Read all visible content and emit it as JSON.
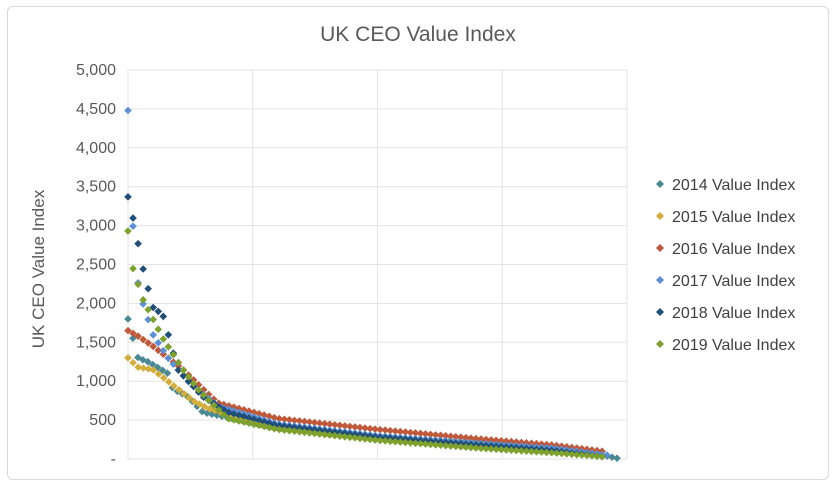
{
  "chart_data": {
    "type": "scatter",
    "title": "UK CEO Value Index",
    "xlabel": "",
    "ylabel": "UK CEO Value Index",
    "ylim": [
      0,
      5000
    ],
    "xlim": [
      0,
      100
    ],
    "y_ticks": [
      {
        "value": 0,
        "label": "-"
      },
      {
        "value": 500,
        "label": "500"
      },
      {
        "value": 1000,
        "label": "1,000"
      },
      {
        "value": 1500,
        "label": "1,500"
      },
      {
        "value": 2000,
        "label": "2,000"
      },
      {
        "value": 2500,
        "label": "2,500"
      },
      {
        "value": 3000,
        "label": "3,000"
      },
      {
        "value": 3500,
        "label": "3,500"
      },
      {
        "value": 4000,
        "label": "4,000"
      },
      {
        "value": 4500,
        "label": "4,500"
      },
      {
        "value": 5000,
        "label": "5,000"
      }
    ],
    "x_grid": [
      0,
      25,
      50,
      75,
      100
    ],
    "grid": true,
    "legend_position": "right",
    "series": [
      {
        "name": "2014 Value Index",
        "color": "#4a8a94",
        "n": 100,
        "points": [
          [
            0,
            1800
          ],
          [
            2,
            1300
          ],
          [
            4,
            1250
          ],
          [
            8,
            1100
          ],
          [
            9,
            900
          ],
          [
            12,
            800
          ],
          [
            15,
            600
          ],
          [
            30,
            400
          ],
          [
            50,
            280
          ],
          [
            75,
            180
          ],
          [
            90,
            120
          ],
          [
            98,
            10
          ]
        ]
      },
      {
        "name": "2015 Value Index",
        "color": "#d4ad3c",
        "n": 90,
        "points": [
          [
            0,
            1300
          ],
          [
            2,
            1180
          ],
          [
            5,
            1150
          ],
          [
            8,
            1000
          ],
          [
            10,
            900
          ],
          [
            13,
            750
          ],
          [
            16,
            650
          ],
          [
            25,
            480
          ],
          [
            40,
            330
          ],
          [
            60,
            230
          ],
          [
            80,
            150
          ],
          [
            91,
            80
          ]
        ]
      },
      {
        "name": "2016 Value Index",
        "color": "#c0583a",
        "n": 95,
        "points": [
          [
            0,
            1650
          ],
          [
            2,
            1580
          ],
          [
            5,
            1450
          ],
          [
            8,
            1300
          ],
          [
            11,
            1150
          ],
          [
            15,
            900
          ],
          [
            18,
            720
          ],
          [
            30,
            520
          ],
          [
            50,
            380
          ],
          [
            70,
            260
          ],
          [
            85,
            180
          ],
          [
            95,
            100
          ]
        ]
      },
      {
        "name": "2017 Value Index",
        "color": "#5b8fd6",
        "n": 96,
        "points": [
          [
            0,
            4480
          ],
          [
            1,
            3000
          ],
          [
            2,
            2270
          ],
          [
            3,
            2000
          ],
          [
            5,
            1600
          ],
          [
            8,
            1300
          ],
          [
            12,
            1000
          ],
          [
            18,
            680
          ],
          [
            30,
            450
          ],
          [
            50,
            300
          ],
          [
            70,
            200
          ],
          [
            85,
            140
          ],
          [
            96,
            50
          ]
        ]
      },
      {
        "name": "2018 Value Index",
        "color": "#1f4e79",
        "n": 95,
        "points": [
          [
            0,
            3370
          ],
          [
            1,
            3100
          ],
          [
            3,
            2450
          ],
          [
            5,
            1950
          ],
          [
            7,
            1850
          ],
          [
            10,
            1150
          ],
          [
            15,
            800
          ],
          [
            20,
            600
          ],
          [
            30,
            430
          ],
          [
            50,
            280
          ],
          [
            70,
            180
          ],
          [
            85,
            110
          ],
          [
            95,
            30
          ]
        ]
      },
      {
        "name": "2019 Value Index",
        "color": "#7fa12e",
        "n": 95,
        "points": [
          [
            0,
            2930
          ],
          [
            1,
            2450
          ],
          [
            3,
            2050
          ],
          [
            5,
            1800
          ],
          [
            7,
            1550
          ],
          [
            9,
            1350
          ],
          [
            11,
            1150
          ],
          [
            14,
            900
          ],
          [
            17,
            700
          ],
          [
            20,
            520
          ],
          [
            30,
            380
          ],
          [
            50,
            240
          ],
          [
            70,
            140
          ],
          [
            85,
            80
          ],
          [
            95,
            30
          ]
        ]
      }
    ]
  }
}
